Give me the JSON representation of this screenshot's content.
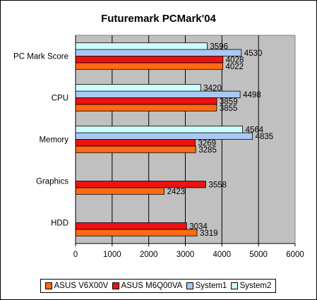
{
  "chart_data": {
    "type": "bar",
    "orientation": "horizontal",
    "title": "Futuremark PCMark'04",
    "categories": [
      "PC Mark Score",
      "CPU",
      "Memory",
      "Graphics",
      "HDD"
    ],
    "series": [
      {
        "name": "ASUS V6X00V",
        "color": "#ff6a13",
        "values": [
          4022,
          3855,
          3285,
          2423,
          3319
        ]
      },
      {
        "name": "ASUS M6Q00VA",
        "color": "#ee1111",
        "values": [
          4028,
          3859,
          3269,
          3558,
          3034
        ]
      },
      {
        "name": "System1",
        "color": "#a9c9f5",
        "values": [
          4530,
          4498,
          4835,
          null,
          null
        ]
      },
      {
        "name": "System2",
        "color": "#ccffff",
        "values": [
          3596,
          3420,
          4564,
          null,
          null
        ]
      }
    ],
    "xlim": [
      0,
      6000
    ],
    "xticks": [
      "0",
      "1000",
      "2000",
      "3000",
      "4000",
      "5000",
      "6000"
    ],
    "grid": true,
    "plot_background": "#c0c0c0",
    "legend_position": "bottom"
  }
}
